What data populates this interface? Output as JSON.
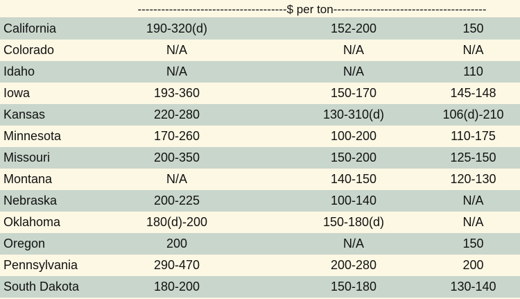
{
  "header": {
    "units_label": "--------------------------------------$ per ton---------------------------------------"
  },
  "rows": [
    {
      "state": "California",
      "col1": "190-320(d)",
      "col2": "152-200",
      "col3": "150"
    },
    {
      "state": "Colorado",
      "col1": "N/A",
      "col2": "N/A",
      "col3": "N/A"
    },
    {
      "state": "Idaho",
      "col1": "N/A",
      "col2": "N/A",
      "col3": "110"
    },
    {
      "state": "Iowa",
      "col1": "193-360",
      "col2": "150-170",
      "col3": "145-148"
    },
    {
      "state": "Kansas",
      "col1": "220-280",
      "col2": "130-310(d)",
      "col3": "106(d)-210"
    },
    {
      "state": "Minnesota",
      "col1": "170-260",
      "col2": "100-200",
      "col3": "110-175"
    },
    {
      "state": "Missouri",
      "col1": "200-350",
      "col2": "150-200",
      "col3": "125-150"
    },
    {
      "state": "Montana",
      "col1": "N/A",
      "col2": "140-150",
      "col3": "120-130"
    },
    {
      "state": "Nebraska",
      "col1": "200-225",
      "col2": "100-140",
      "col3": "N/A"
    },
    {
      "state": "Oklahoma",
      "col1": "180(d)-200",
      "col2": "150-180(d)",
      "col3": "N/A"
    },
    {
      "state": "Oregon",
      "col1": "200",
      "col2": "N/A",
      "col3": "150"
    },
    {
      "state": "Pennsylvania",
      "col1": "290-470",
      "col2": "200-280",
      "col3": "200"
    },
    {
      "state": "South Dakota",
      "col1": "180-200",
      "col2": "150-180",
      "col3": "130-140"
    }
  ],
  "colors": {
    "shaded_row": "#c9d6cc",
    "plain_row": "#fdf8e4"
  }
}
